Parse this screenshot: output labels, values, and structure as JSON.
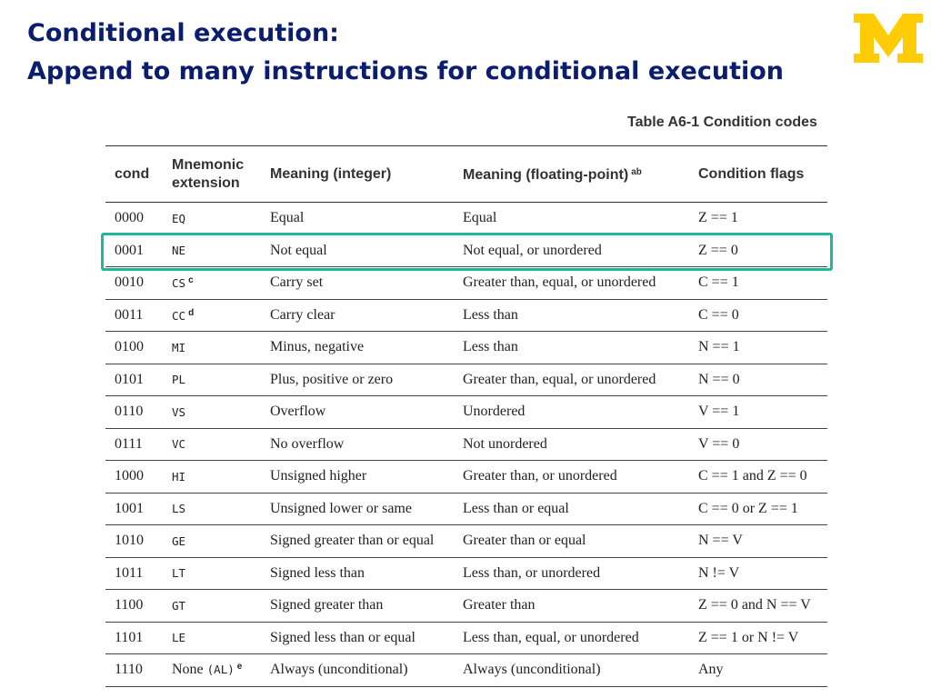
{
  "slide": {
    "title_line1": "Conditional execution:",
    "title_line2": "Append to many instructions for conditional execution"
  },
  "logo": {
    "text": "M",
    "color": "#ffcb05"
  },
  "highlight": {
    "row": "0001",
    "color": "#19b99a"
  },
  "table": {
    "caption": "Table A6-1 Condition codes",
    "headers": {
      "cond": "cond",
      "mnemonic_line1": "Mnemonic",
      "mnemonic_line2": "extension",
      "meaning_int": "Meaning (integer)",
      "meaning_fp": "Meaning (floating-point)",
      "meaning_fp_note": "ab",
      "flags": "Condition flags"
    },
    "rows": [
      {
        "cond": "0000",
        "mnemonic": "EQ",
        "note": "",
        "meaning_int": "Equal",
        "meaning_fp": "Equal",
        "flags": "Z == 1"
      },
      {
        "cond": "0001",
        "mnemonic": "NE",
        "note": "",
        "meaning_int": "Not equal",
        "meaning_fp": "Not equal, or unordered",
        "flags": "Z == 0"
      },
      {
        "cond": "0010",
        "mnemonic": "CS",
        "note": "c",
        "meaning_int": "Carry set",
        "meaning_fp": "Greater than, equal, or unordered",
        "flags": "C == 1"
      },
      {
        "cond": "0011",
        "mnemonic": "CC",
        "note": "d",
        "meaning_int": "Carry clear",
        "meaning_fp": "Less than",
        "flags": "C == 0"
      },
      {
        "cond": "0100",
        "mnemonic": "MI",
        "note": "",
        "meaning_int": "Minus, negative",
        "meaning_fp": "Less than",
        "flags": "N == 1"
      },
      {
        "cond": "0101",
        "mnemonic": "PL",
        "note": "",
        "meaning_int": "Plus, positive or zero",
        "meaning_fp": "Greater than, equal, or unordered",
        "flags": "N == 0"
      },
      {
        "cond": "0110",
        "mnemonic": "VS",
        "note": "",
        "meaning_int": "Overflow",
        "meaning_fp": "Unordered",
        "flags": "V == 1"
      },
      {
        "cond": "0111",
        "mnemonic": "VC",
        "note": "",
        "meaning_int": "No overflow",
        "meaning_fp": "Not unordered",
        "flags": "V == 0"
      },
      {
        "cond": "1000",
        "mnemonic": "HI",
        "note": "",
        "meaning_int": "Unsigned higher",
        "meaning_fp": "Greater than, or unordered",
        "flags": "C == 1 and Z == 0"
      },
      {
        "cond": "1001",
        "mnemonic": "LS",
        "note": "",
        "meaning_int": "Unsigned lower or same",
        "meaning_fp": "Less than or equal",
        "flags": "C == 0 or Z == 1"
      },
      {
        "cond": "1010",
        "mnemonic": "GE",
        "note": "",
        "meaning_int": "Signed greater than or equal",
        "meaning_fp": "Greater than or equal",
        "flags": "N == V"
      },
      {
        "cond": "1011",
        "mnemonic": "LT",
        "note": "",
        "meaning_int": "Signed less than",
        "meaning_fp": "Less than, or unordered",
        "flags": "N != V"
      },
      {
        "cond": "1100",
        "mnemonic": "GT",
        "note": "",
        "meaning_int": "Signed greater than",
        "meaning_fp": "Greater than",
        "flags": "Z == 0 and N == V"
      },
      {
        "cond": "1101",
        "mnemonic": "LE",
        "note": "",
        "meaning_int": "Signed less than or equal",
        "meaning_fp": "Less than, equal, or unordered",
        "flags": "Z == 1 or N != V"
      },
      {
        "cond": "1110",
        "mnemonic_prefix": "None",
        "mnemonic": "(AL)",
        "note": "e",
        "meaning_int": "Always (unconditional)",
        "meaning_fp": "Always (unconditional)",
        "flags": "Any"
      }
    ]
  }
}
